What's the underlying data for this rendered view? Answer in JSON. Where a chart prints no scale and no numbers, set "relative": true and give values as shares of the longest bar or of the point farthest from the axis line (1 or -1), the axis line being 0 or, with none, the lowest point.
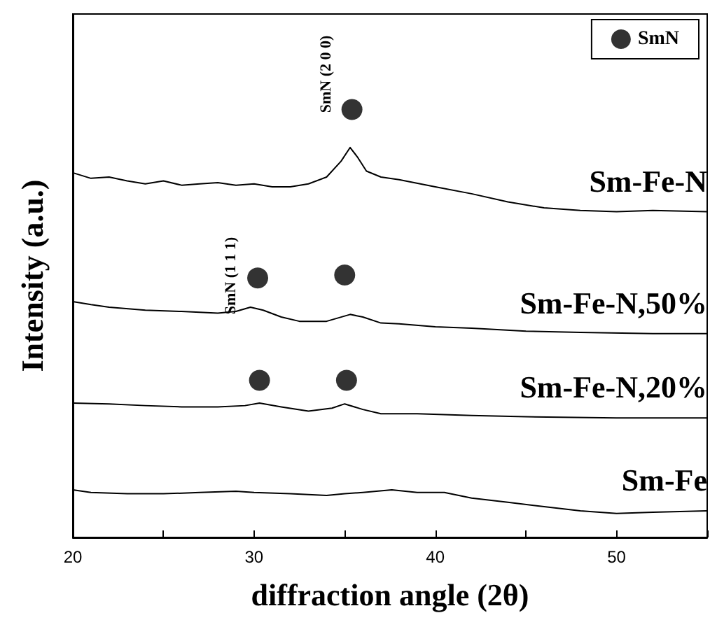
{
  "chart_data": {
    "type": "line",
    "relative": true,
    "xlabel": "diffraction angle (2θ)",
    "ylabel": "Intensity (a.u.)",
    "xlim": [
      20,
      55
    ],
    "xticks": [
      20,
      {
        "value": 25,
        "label": null
      },
      30,
      {
        "value": 35,
        "label": null
      },
      40,
      {
        "value": 45,
        "label": null
      },
      50,
      {
        "value": 55,
        "label": null
      }
    ],
    "legend": "top right",
    "grid": false,
    "series": [
      {
        "name": "Sm-Fe-N",
        "color": "#000000",
        "marker": "none",
        "x": [
          20,
          21,
          22,
          23,
          24,
          25,
          26,
          27,
          28,
          29,
          30,
          31,
          32,
          33,
          34,
          34.8,
          35.3,
          35.7,
          36.2,
          37,
          38,
          40,
          42,
          44,
          46,
          48,
          50,
          52,
          55
        ],
        "values": [
          0.852,
          0.839,
          0.842,
          0.833,
          0.826,
          0.833,
          0.823,
          0.826,
          0.829,
          0.823,
          0.826,
          0.819,
          0.819,
          0.826,
          0.842,
          0.879,
          0.911,
          0.889,
          0.856,
          0.842,
          0.836,
          0.819,
          0.803,
          0.784,
          0.77,
          0.764,
          0.761,
          0.764,
          0.761
        ]
      },
      {
        "name": "Sm-Fe-N,50%",
        "color": "#000000",
        "marker": "none",
        "x": [
          20,
          21,
          22,
          24,
          26,
          28,
          29,
          29.8,
          30.5,
          31.5,
          32.5,
          34,
          35.3,
          36,
          37,
          38,
          40,
          42,
          45,
          48,
          52,
          55
        ],
        "values": [
          0.551,
          0.544,
          0.538,
          0.531,
          0.528,
          0.524,
          0.528,
          0.538,
          0.531,
          0.515,
          0.505,
          0.505,
          0.521,
          0.515,
          0.501,
          0.499,
          0.492,
          0.489,
          0.482,
          0.479,
          0.476,
          0.476
        ]
      },
      {
        "name": "Sm-Fe-N,20%",
        "color": "#000000",
        "marker": "none",
        "x": [
          20,
          22,
          24,
          26,
          28,
          29.5,
          30.3,
          31.5,
          33,
          34.3,
          35,
          36,
          37,
          39,
          42,
          45,
          50,
          55
        ],
        "values": [
          0.314,
          0.312,
          0.308,
          0.305,
          0.305,
          0.308,
          0.314,
          0.305,
          0.295,
          0.302,
          0.312,
          0.299,
          0.289,
          0.289,
          0.285,
          0.282,
          0.279,
          0.279
        ]
      },
      {
        "name": "Sm-Fe",
        "color": "#000000",
        "marker": "none",
        "x": [
          20,
          21,
          23,
          25,
          27,
          29,
          30,
          32,
          34,
          35,
          36,
          37.6,
          39,
          40.5,
          42,
          44,
          46,
          48,
          50,
          52,
          55
        ],
        "values": [
          0.111,
          0.105,
          0.102,
          0.102,
          0.105,
          0.108,
          0.105,
          0.102,
          0.098,
          0.102,
          0.105,
          0.111,
          0.105,
          0.105,
          0.092,
          0.082,
          0.072,
          0.062,
          0.056,
          0.059,
          0.062
        ]
      },
      {
        "name": "SmN",
        "type": "scatter",
        "color": "#000000",
        "marker": "circle",
        "x": [
          35.4,
          30.2,
          35.0,
          30.3,
          35.1
        ],
        "values": [
          1.0,
          0.606,
          0.613,
          0.367,
          0.367
        ]
      }
    ],
    "annotations": [
      "SmN (2 0 0)",
      "SmN (1 1 1)"
    ]
  }
}
